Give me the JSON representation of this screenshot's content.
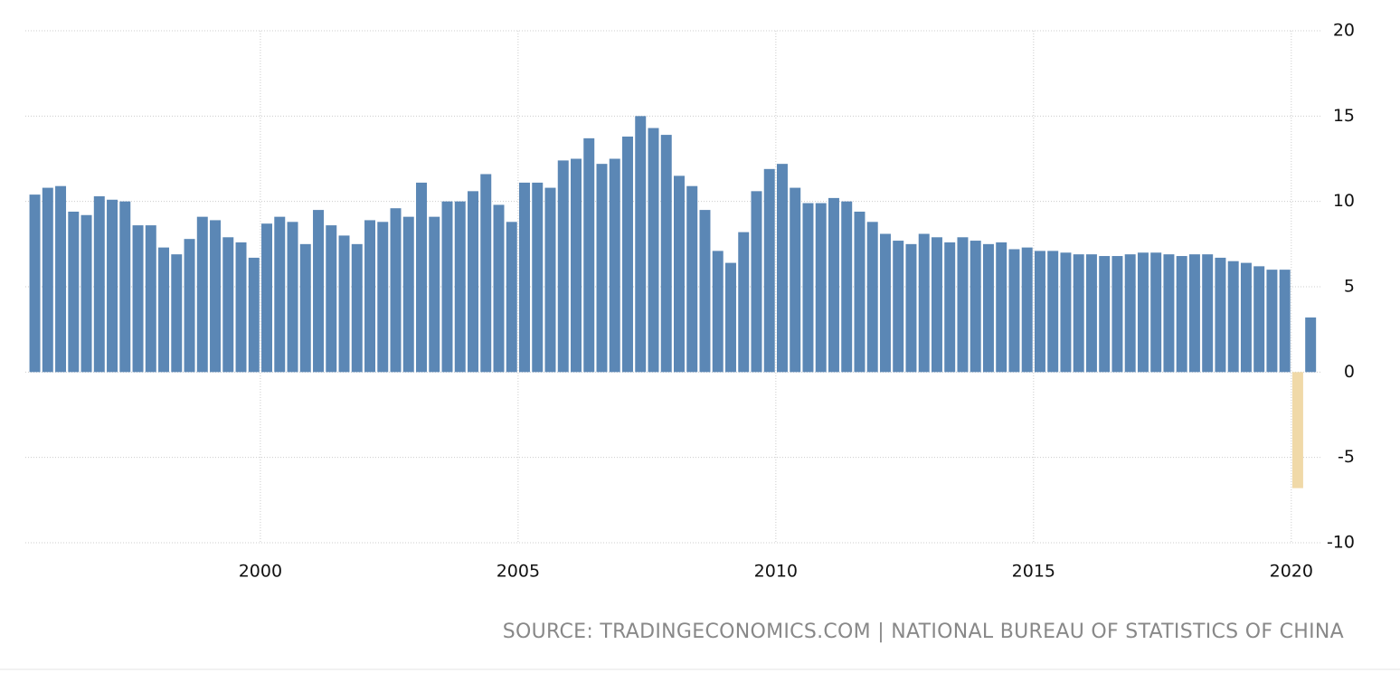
{
  "chart_data": {
    "type": "bar",
    "source": "SOURCE: TRADINGECONOMICS.COM | NATIONAL BUREAU OF STATISTICS OF CHINA",
    "series": [
      {
        "color": "#5b87b5",
        "negative_color": "#f0d9a8",
        "x": [
          1995.625,
          1995.875,
          1996.125,
          1996.375,
          1996.625,
          1996.875,
          1997.125,
          1997.375,
          1997.625,
          1997.875,
          1998.125,
          1998.375,
          1998.625,
          1998.875,
          1999.125,
          1999.375,
          1999.625,
          1999.875,
          2000.125,
          2000.375,
          2000.625,
          2000.875,
          2001.125,
          2001.375,
          2001.625,
          2001.875,
          2002.125,
          2002.375,
          2002.625,
          2002.875,
          2003.125,
          2003.375,
          2003.625,
          2003.875,
          2004.125,
          2004.375,
          2004.625,
          2004.875,
          2005.125,
          2005.375,
          2005.625,
          2005.875,
          2006.125,
          2006.375,
          2006.625,
          2006.875,
          2007.125,
          2007.375,
          2007.625,
          2007.875,
          2008.125,
          2008.375,
          2008.625,
          2008.875,
          2009.125,
          2009.375,
          2009.625,
          2009.875,
          2010.125,
          2010.375,
          2010.625,
          2010.875,
          2011.125,
          2011.375,
          2011.625,
          2011.875,
          2012.125,
          2012.375,
          2012.625,
          2012.875,
          2013.125,
          2013.375,
          2013.625,
          2013.875,
          2014.125,
          2014.375,
          2014.625,
          2014.875,
          2015.125,
          2015.375,
          2015.625,
          2015.875,
          2016.125,
          2016.375,
          2016.625,
          2016.875,
          2017.125,
          2017.375,
          2017.625,
          2017.875,
          2018.125,
          2018.375,
          2018.625,
          2018.875,
          2019.125,
          2019.375,
          2019.625,
          2019.875,
          2020.125,
          2020.375
        ],
        "values": [
          10.4,
          10.8,
          10.9,
          9.4,
          9.2,
          10.3,
          10.1,
          10.0,
          8.6,
          8.6,
          7.3,
          6.9,
          7.8,
          9.1,
          8.9,
          7.9,
          7.6,
          6.7,
          8.7,
          9.1,
          8.8,
          7.5,
          9.5,
          8.6,
          8.0,
          7.5,
          8.9,
          8.8,
          9.6,
          9.1,
          11.1,
          9.1,
          10.0,
          10.0,
          10.6,
          11.6,
          9.8,
          8.8,
          11.1,
          11.1,
          10.8,
          12.4,
          12.5,
          13.7,
          12.2,
          12.5,
          13.8,
          15.0,
          14.3,
          13.9,
          11.5,
          10.9,
          9.5,
          7.1,
          6.4,
          8.2,
          10.6,
          11.9,
          12.2,
          10.8,
          9.9,
          9.9,
          10.2,
          10.0,
          9.4,
          8.8,
          8.1,
          7.7,
          7.5,
          8.1,
          7.9,
          7.6,
          7.9,
          7.7,
          7.5,
          7.6,
          7.2,
          7.3,
          7.1,
          7.1,
          7.0,
          6.9,
          6.9,
          6.8,
          6.8,
          6.9,
          7.0,
          7.0,
          6.9,
          6.8,
          6.9,
          6.9,
          6.7,
          6.5,
          6.4,
          6.2,
          6.0,
          6.0,
          -6.8,
          3.2
        ]
      }
    ],
    "xlim": [
      1995.44,
      2020.6
    ],
    "xticks": [
      2000,
      2005,
      2010,
      2015,
      2020
    ],
    "ylim": [
      -10,
      20
    ],
    "yticks": [
      -10,
      -5,
      0,
      5,
      10,
      15,
      20
    ],
    "grid": true
  }
}
